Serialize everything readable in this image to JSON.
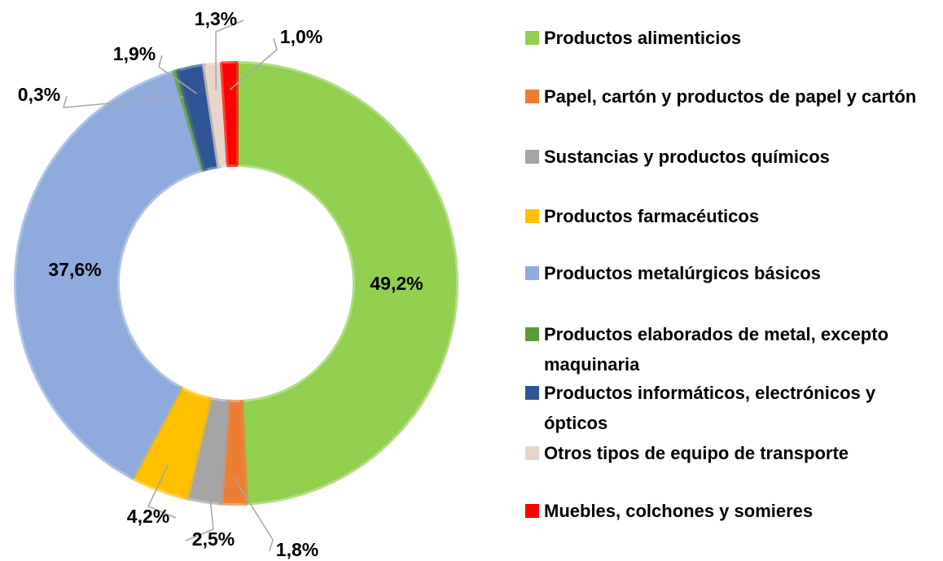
{
  "chart_data": {
    "type": "donut",
    "categories": [
      "Productos alimenticios",
      "Papel, cartón y productos de papel y cartón",
      "Sustancias y productos químicos",
      "Productos farmacéuticos",
      "Productos metalúrgicos básicos",
      "Productos elaborados de metal, excepto maquinaria",
      "Productos informáticos, electrónicos y ópticos",
      "Otros tipos de equipo de transporte",
      "Muebles, colchones y somieres"
    ],
    "values": [
      49.2,
      1.8,
      2.5,
      4.2,
      37.6,
      0.3,
      1.9,
      1.3,
      1.0
    ],
    "value_labels": [
      "49,2%",
      "1,8%",
      "2,5%",
      "4,2%",
      "37,6%",
      "0,3%",
      "1,9%",
      "1,3%",
      "1,0%"
    ],
    "colors": [
      "#92d050",
      "#ed7d31",
      "#a5a5a5",
      "#ffc000",
      "#8faadc",
      "#5b9b3c",
      "#2f5597",
      "#e8d5c9",
      "#ff0000"
    ],
    "legend": "right"
  }
}
